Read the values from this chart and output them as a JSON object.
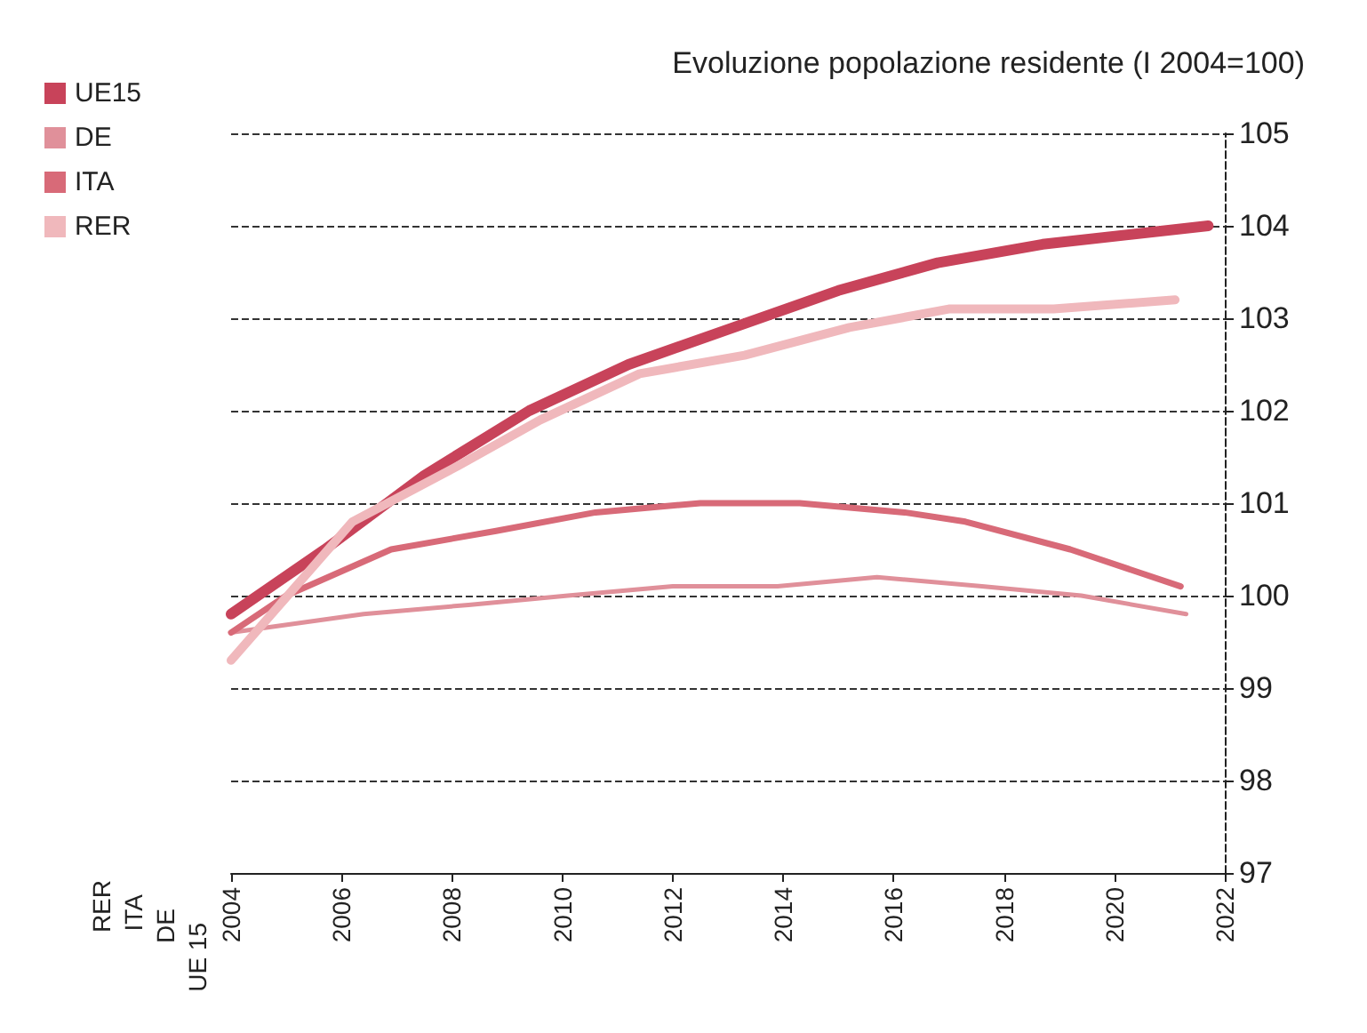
{
  "chart_data": {
    "type": "line",
    "title": "Evoluzione popolazione residente (I 2004=100)",
    "series": [
      {
        "name": "UE15",
        "color": "#c8435a",
        "x": [
          2004,
          2005.7,
          2007.5,
          2009.4,
          2011.2,
          2013.1,
          2015,
          2016.8,
          2018.7,
          2021.7
        ],
        "values": [
          99.8,
          100.5,
          101.3,
          102,
          102.5,
          102.9,
          103.3,
          103.6,
          103.8,
          104
        ]
      },
      {
        "name": "DE",
        "color": "#e0909a",
        "x": [
          2004,
          2006.4,
          2008.3,
          2010.1,
          2012,
          2013.9,
          2015.7,
          2017.6,
          2019.4,
          2021.3
        ],
        "values": [
          99.6,
          99.8,
          99.9,
          100,
          100.1,
          100.1,
          100.2,
          100.1,
          100,
          99.8
        ]
      },
      {
        "name": "ITA",
        "color": "#d86a78",
        "x": [
          2004,
          2005,
          2006.9,
          2008.8,
          2010.6,
          2012.5,
          2014.3,
          2016.2,
          2017.3,
          2019.2,
          2021.2
        ],
        "values": [
          99.6,
          100,
          100.5,
          100.7,
          100.9,
          101,
          101,
          100.9,
          100.8,
          100.5,
          100.1
        ]
      },
      {
        "name": "RER",
        "color": "#f0b8bc",
        "x": [
          2004,
          2006.2,
          2008.1,
          2009.6,
          2011.4,
          2013.3,
          2015.2,
          2017,
          2018.9,
          2021.1
        ],
        "values": [
          99.3,
          100.8,
          101.4,
          101.9,
          102.4,
          102.6,
          102.9,
          103.1,
          103.1,
          103.2
        ]
      }
    ],
    "xlim": [
      2004,
      2022
    ],
    "xticks": [
      2004,
      2006,
      2008,
      2010,
      2012,
      2014,
      2016,
      2018,
      2020,
      2022
    ],
    "ylim": [
      97,
      105
    ],
    "yticks": [
      97,
      98,
      99,
      100,
      101,
      102,
      103,
      104,
      105
    ],
    "grid": "y",
    "legend": "top left",
    "marker": "none",
    "annotations": [
      "RER",
      "ITA",
      "DE",
      "UE 15"
    ]
  }
}
